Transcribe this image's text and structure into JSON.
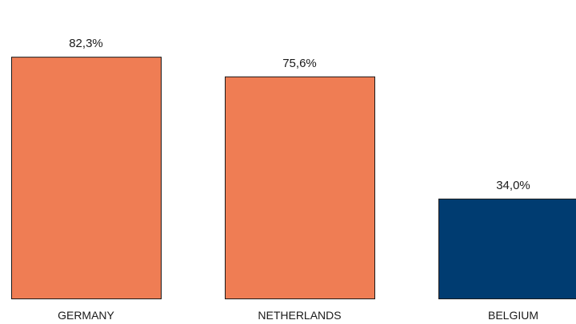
{
  "chart_data": {
    "type": "bar",
    "categories": [
      "GERMANY",
      "NETHERLANDS",
      "BELGIUM"
    ],
    "values": [
      82.3,
      75.6,
      34.0
    ],
    "value_labels": [
      "82,3%",
      "75,6%",
      "34,0%"
    ],
    "bar_colors": [
      "#EF7D54",
      "#EF7D54",
      "#003C71"
    ],
    "bar_outline_color": "#1a1a1a",
    "ylim": [
      0,
      100
    ],
    "grid": false,
    "legend": "none"
  }
}
